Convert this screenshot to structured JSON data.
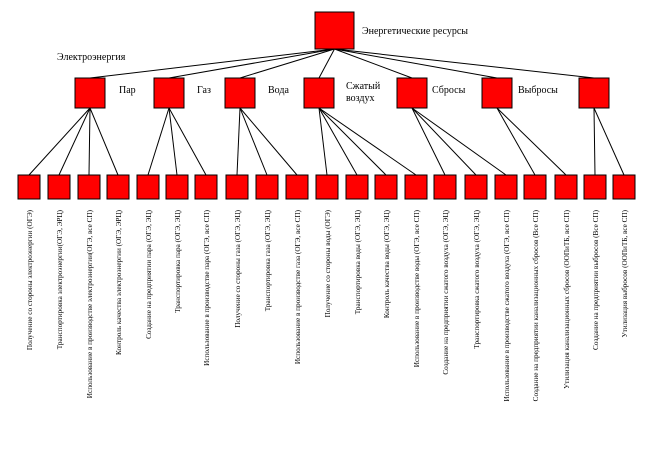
{
  "diagram": {
    "root": {
      "label": "Энергетические ресурсы"
    },
    "categories": [
      {
        "label": "Электроэнергия",
        "leaves": [
          "Получение со стороны электроэнергии (ОГЭ)",
          "Транспортировка электроэнергии(ОГЭ, ЭРЦ)",
          "Использование в производстве электроэнергии(ОГЭ, все СП)",
          "Контроль качества электроэнергии (ОГЭ, ЭРЦ)"
        ]
      },
      {
        "label": "Пар",
        "leaves": [
          "Создание на предприятии пара (ОГЭ, ЭЦ)",
          "Транспортировка пара (ОГЭ, ЭЦ)",
          "Использование в производстве пара (ОГЭ, все СП)"
        ]
      },
      {
        "label": "Газ",
        "leaves": [
          "Получение со стороны газа (ОГЭ, ЭЦ)",
          "Транспортировка газа (ОГЭ, ЭЦ)",
          "Использование в производстве газа (ОГЭ, все СП)"
        ]
      },
      {
        "label": "Вода",
        "leaves": [
          "Получение со стороны воды (ОГЭ)",
          "Транспортировка воды (ОГЭ, ЭЦ)",
          "Контроль качества воды (ОГЭ, ЭЦ)",
          "Использование в производстве воды (ОГЭ, все СП)"
        ]
      },
      {
        "label": "Сжатый воздух",
        "leaves": [
          "Создание на предприятии сжатого воздуха (ОГЭ, ЭЦ)",
          "Транспортировка сжатого воздуха (ОГЭ, ЭЦ)",
          "Использование в производстве сжатого воздуха (ОГЭ, все СП)"
        ]
      },
      {
        "label": "Сбросы",
        "leaves": [
          "Создание на предприятии канализационных сбросов (Все СП)",
          "Утилизация канализационных сбросов (ООПиТБ, все СП)"
        ]
      },
      {
        "label": "Выбросы",
        "leaves": [
          "Создание на предприятии выбросов (Все СП)",
          "Утилизация выбросов (ООПиТБ, все СП)"
        ]
      }
    ]
  }
}
